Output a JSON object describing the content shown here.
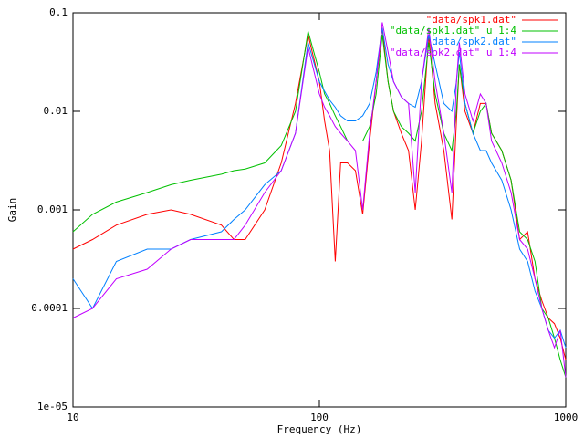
{
  "chart_data": {
    "type": "line",
    "xlabel": "Frequency (Hz)",
    "ylabel": "Gain",
    "xscale": "log",
    "yscale": "log",
    "legend": "top-right",
    "xlim": [
      10,
      1000
    ],
    "ylim": [
      1e-05,
      0.1
    ],
    "xticks": [
      10,
      100,
      1000
    ],
    "yticks": [
      {
        "value": 1e-05,
        "label": "1e-05"
      },
      0.0001,
      0.001,
      0.01,
      0.1
    ],
    "x": [
      10,
      12,
      15,
      20,
      25,
      30,
      40,
      45,
      50,
      60,
      70,
      80,
      90,
      100,
      105,
      110,
      116,
      122,
      130,
      140,
      150,
      160,
      170,
      180,
      190,
      200,
      215,
      230,
      245,
      260,
      278,
      295,
      320,
      345,
      360,
      370,
      390,
      420,
      450,
      475,
      500,
      550,
      600,
      650,
      700,
      750,
      800,
      850,
      900,
      950,
      1000
    ],
    "series": [
      {
        "name": "\"data/spk1.dat\"",
        "color": "#ff0000",
        "values": [
          0.0004,
          0.0005,
          0.0007,
          0.0009,
          0.001,
          0.0009,
          0.0007,
          0.0005,
          0.0005,
          0.001,
          0.003,
          0.012,
          0.06,
          0.02,
          0.008,
          0.004,
          0.0003,
          0.003,
          0.003,
          0.0025,
          0.0009,
          0.005,
          0.02,
          0.07,
          0.02,
          0.01,
          0.006,
          0.004,
          0.001,
          0.005,
          0.06,
          0.012,
          0.004,
          0.0008,
          0.008,
          0.03,
          0.01,
          0.006,
          0.012,
          0.012,
          0.006,
          0.004,
          0.002,
          0.0005,
          0.0006,
          0.0002,
          0.00012,
          8e-05,
          7e-05,
          5e-05,
          3e-05
        ]
      },
      {
        "name": "\"data/spk1.dat\" u 1:4",
        "color": "#00c000",
        "values": [
          0.0006,
          0.0009,
          0.0012,
          0.0015,
          0.0018,
          0.002,
          0.0023,
          0.0025,
          0.0026,
          0.003,
          0.0045,
          0.01,
          0.065,
          0.025,
          0.015,
          0.012,
          0.009,
          0.007,
          0.005,
          0.005,
          0.005,
          0.007,
          0.015,
          0.06,
          0.02,
          0.01,
          0.007,
          0.006,
          0.005,
          0.01,
          0.05,
          0.015,
          0.006,
          0.004,
          0.01,
          0.03,
          0.012,
          0.006,
          0.01,
          0.012,
          0.006,
          0.004,
          0.002,
          0.0006,
          0.0005,
          0.0003,
          0.0001,
          8e-05,
          5e-05,
          3e-05,
          2e-05
        ]
      },
      {
        "name": "\"data/spk2.dat\"",
        "color": "#0080ff",
        "values": [
          0.0002,
          0.0001,
          0.0003,
          0.0004,
          0.0004,
          0.0005,
          0.0006,
          0.0008,
          0.001,
          0.0018,
          0.0025,
          0.006,
          0.05,
          0.02,
          0.016,
          0.013,
          0.011,
          0.009,
          0.008,
          0.008,
          0.009,
          0.012,
          0.025,
          0.07,
          0.03,
          0.02,
          0.014,
          0.012,
          0.011,
          0.02,
          0.06,
          0.03,
          0.012,
          0.01,
          0.02,
          0.04,
          0.012,
          0.006,
          0.004,
          0.004,
          0.003,
          0.002,
          0.001,
          0.0004,
          0.0003,
          0.00015,
          0.0001,
          6e-05,
          5e-05,
          6e-05,
          4e-05
        ]
      },
      {
        "name": "\"data/spk2.dat\" u 1:4",
        "color": "#c000ff",
        "values": [
          8e-05,
          0.0001,
          0.0002,
          0.00025,
          0.0004,
          0.0005,
          0.0005,
          0.0005,
          0.0007,
          0.0015,
          0.0025,
          0.006,
          0.045,
          0.015,
          0.011,
          0.009,
          0.007,
          0.006,
          0.005,
          0.004,
          0.001,
          0.006,
          0.02,
          0.08,
          0.04,
          0.02,
          0.014,
          0.012,
          0.0015,
          0.02,
          0.07,
          0.02,
          0.006,
          0.0015,
          0.02,
          0.05,
          0.015,
          0.008,
          0.015,
          0.012,
          0.005,
          0.003,
          0.0015,
          0.0005,
          0.0004,
          0.0002,
          0.0001,
          6e-05,
          4e-05,
          6e-05,
          2e-05
        ]
      }
    ]
  }
}
